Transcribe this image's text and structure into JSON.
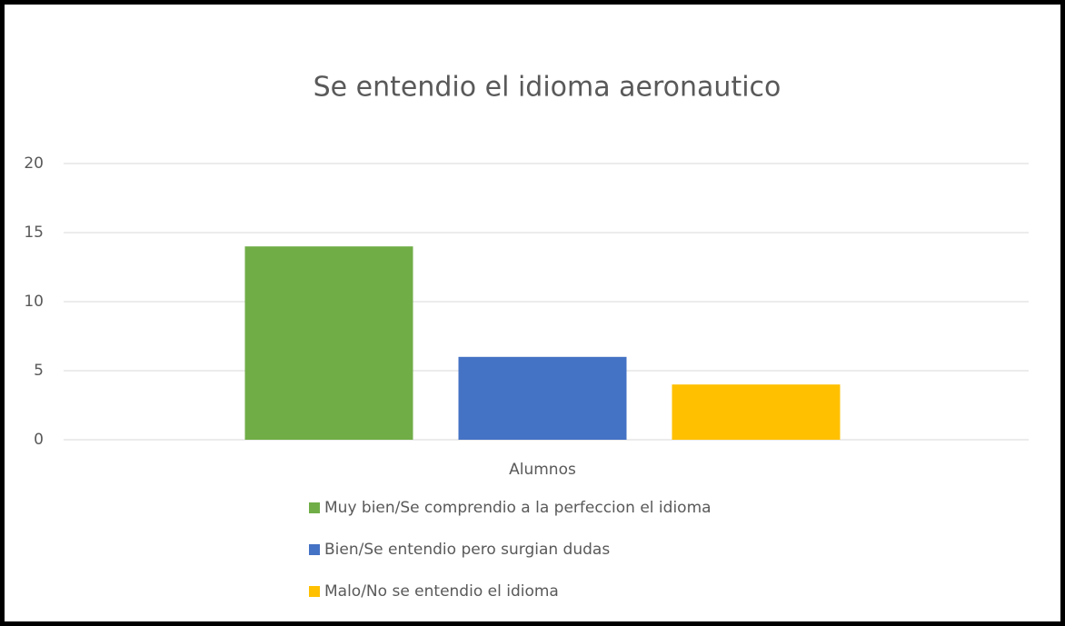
{
  "chart_data": {
    "type": "bar",
    "title": "Se entendio el idioma aeronautico",
    "categories": [
      "Alumnos"
    ],
    "series": [
      {
        "name": "Muy bien/Se comprendio a la perfeccion el idioma",
        "color": "#70ad47",
        "values": [
          14
        ]
      },
      {
        "name": "Bien/Se entendio pero surgian dudas",
        "color": "#4472c4",
        "values": [
          6
        ]
      },
      {
        "name": "Malo/No se entendio el idioma",
        "color": "#ffc000",
        "values": [
          4
        ]
      }
    ],
    "ylim": [
      0,
      20
    ],
    "yticks": [
      0,
      5,
      10,
      15,
      20
    ],
    "grid": true,
    "legend": "bottom"
  }
}
